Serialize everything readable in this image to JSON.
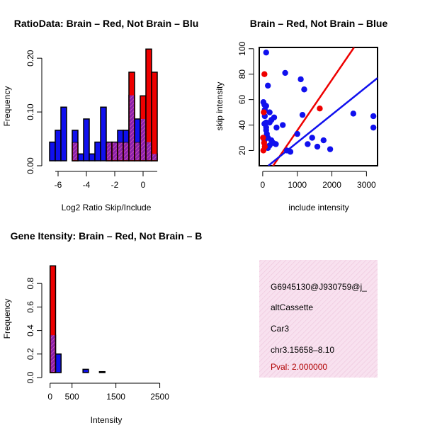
{
  "colors": {
    "brain": "#ee0000",
    "not_brain": "#1010ee",
    "overlap": "#8822aa",
    "overlap_hatch": "#dd55bb",
    "info_bg": "#f8e1ef",
    "info_hatch": "#ecbfd8",
    "pval": "#b00000"
  },
  "chart_data": [
    {
      "type": "bar",
      "title": "RatioData: Brain – Red, Not Brain – Blu",
      "xlabel": "Log2 Ratio Skip/Include",
      "ylabel": "Frequency",
      "xlim": [
        -6.75,
        1.55
      ],
      "ylim": [
        0,
        0.22
      ],
      "xticks": [
        -6,
        -4,
        -2,
        0
      ],
      "yticks": [
        0.0,
        0.1,
        0.2
      ],
      "ytick_labels": [
        "0.00",
        "0.10",
        "0.20"
      ],
      "bin_edges": [
        -6.6,
        -6.2,
        -5.8,
        -5.4,
        -5.0,
        -4.6,
        -4.2,
        -3.8,
        -3.4,
        -3.0,
        -2.6,
        -2.2,
        -1.8,
        -1.4,
        -1.0,
        -0.6,
        -0.2,
        0.2,
        0.6,
        1.0
      ],
      "series": [
        {
          "name": "Not Brain",
          "color": "blue",
          "values": [
            0.044,
            0.066,
            0.109,
            0.0,
            0.066,
            0.022,
            0.087,
            0.022,
            0.044,
            0.109,
            0.044,
            0.044,
            0.066,
            0.066,
            0.131,
            0.087,
            0.087,
            0.044,
            0.022
          ]
        },
        {
          "name": "Brain",
          "color": "red",
          "values": [
            0.0,
            0.0,
            0.0,
            0.0,
            0.043,
            0.0,
            0.0,
            0.0,
            0.0,
            0.0,
            0.043,
            0.043,
            0.043,
            0.043,
            0.174,
            0.043,
            0.13,
            0.217,
            0.174
          ]
        }
      ]
    },
    {
      "type": "scatter",
      "title": "Brain – Red, Not Brain – Blue",
      "xlabel": "include intensity",
      "ylabel": "skip intensity",
      "xlim": [
        -100,
        3320
      ],
      "ylim": [
        8,
        101
      ],
      "xticks": [
        0,
        1000,
        2000,
        3000
      ],
      "yticks": [
        20,
        40,
        60,
        80,
        100
      ],
      "series": [
        {
          "name": "Not Brain",
          "color": "blue",
          "points": [
            [
              100,
              97
            ],
            [
              650,
              81
            ],
            [
              1100,
              76
            ],
            [
              1200,
              68
            ],
            [
              150,
              71
            ],
            [
              20,
              58
            ],
            [
              50,
              56
            ],
            [
              100,
              55
            ],
            [
              60,
              52
            ],
            [
              200,
              50
            ],
            [
              330,
              46
            ],
            [
              250,
              44
            ],
            [
              1150,
              48
            ],
            [
              2620,
              49
            ],
            [
              3200,
              47
            ],
            [
              3200,
              38
            ],
            [
              580,
              40
            ],
            [
              400,
              38
            ],
            [
              200,
              42
            ],
            [
              100,
              42
            ],
            [
              50,
              41
            ],
            [
              100,
              36
            ],
            [
              150,
              30
            ],
            [
              250,
              28
            ],
            [
              300,
              26
            ],
            [
              200,
              24
            ],
            [
              150,
              22
            ],
            [
              80,
              23
            ],
            [
              50,
              28
            ],
            [
              1000,
              33
            ],
            [
              1300,
              25
            ],
            [
              1430,
              30
            ],
            [
              1580,
              23
            ],
            [
              1760,
              28
            ],
            [
              1950,
              21
            ],
            [
              800,
              19
            ],
            [
              700,
              20
            ],
            [
              380,
              25
            ],
            [
              120,
              33
            ],
            [
              100,
              38
            ],
            [
              60,
              47
            ]
          ]
        },
        {
          "name": "Brain",
          "color": "red",
          "points": [
            [
              50,
              80
            ],
            [
              30,
              50
            ],
            [
              10,
              30
            ],
            [
              20,
              20
            ],
            [
              40,
              26
            ],
            [
              60,
              23
            ],
            [
              1650,
              53
            ]
          ]
        }
      ],
      "fit_lines": [
        {
          "name": "Brain fit",
          "color": "red",
          "from": [
            -100,
            -8
          ],
          "to": [
            2640,
            101
          ]
        },
        {
          "name": "Not Brain fit",
          "color": "blue",
          "from": [
            160,
            8
          ],
          "to": [
            3320,
            77
          ]
        }
      ]
    },
    {
      "type": "bar",
      "title": "Gene Itensity: Brain – Red, Not Brain – B",
      "xlabel": "Intensity",
      "ylabel": "Frequency",
      "xlim": [
        -60,
        2620
      ],
      "ylim": [
        0,
        1.0
      ],
      "xticks": [
        0,
        500,
        1500,
        2500
      ],
      "yticks": [
        0.0,
        0.2,
        0.4,
        0.6,
        0.8
      ],
      "ytick_labels": [
        "0.0",
        "0.2",
        "0.4",
        "0.6",
        "0.8"
      ],
      "bin_edges": [
        0,
        125,
        250,
        375,
        500,
        625,
        750,
        875,
        1000,
        1125,
        1250,
        1375,
        1500,
        1625,
        1750,
        1875,
        2000,
        2125,
        2250,
        2375,
        2500
      ],
      "series": [
        {
          "name": "Not Brain",
          "color": "blue",
          "values": [
            0.36,
            0.2,
            0.04,
            0.04,
            0.04,
            0.03,
            0.07,
            0.03,
            0.03,
            0.05,
            0.04,
            0.04,
            0.03,
            0.02,
            0.04,
            0.04,
            0.02,
            0.03,
            0.02,
            0.03
          ]
        },
        {
          "name": "Brain",
          "color": "red",
          "values": [
            0.95,
            0,
            0,
            0,
            0,
            0,
            0,
            0,
            0,
            0,
            0,
            0,
            0,
            0,
            0,
            0,
            0,
            0,
            0,
            0
          ]
        }
      ]
    }
  ],
  "info_panel": {
    "lines": [
      "G6945130@J930759@j_",
      "altCassette",
      "Car3",
      "chr3.15658–8.10"
    ],
    "pval": "Pval: 2.000000"
  }
}
